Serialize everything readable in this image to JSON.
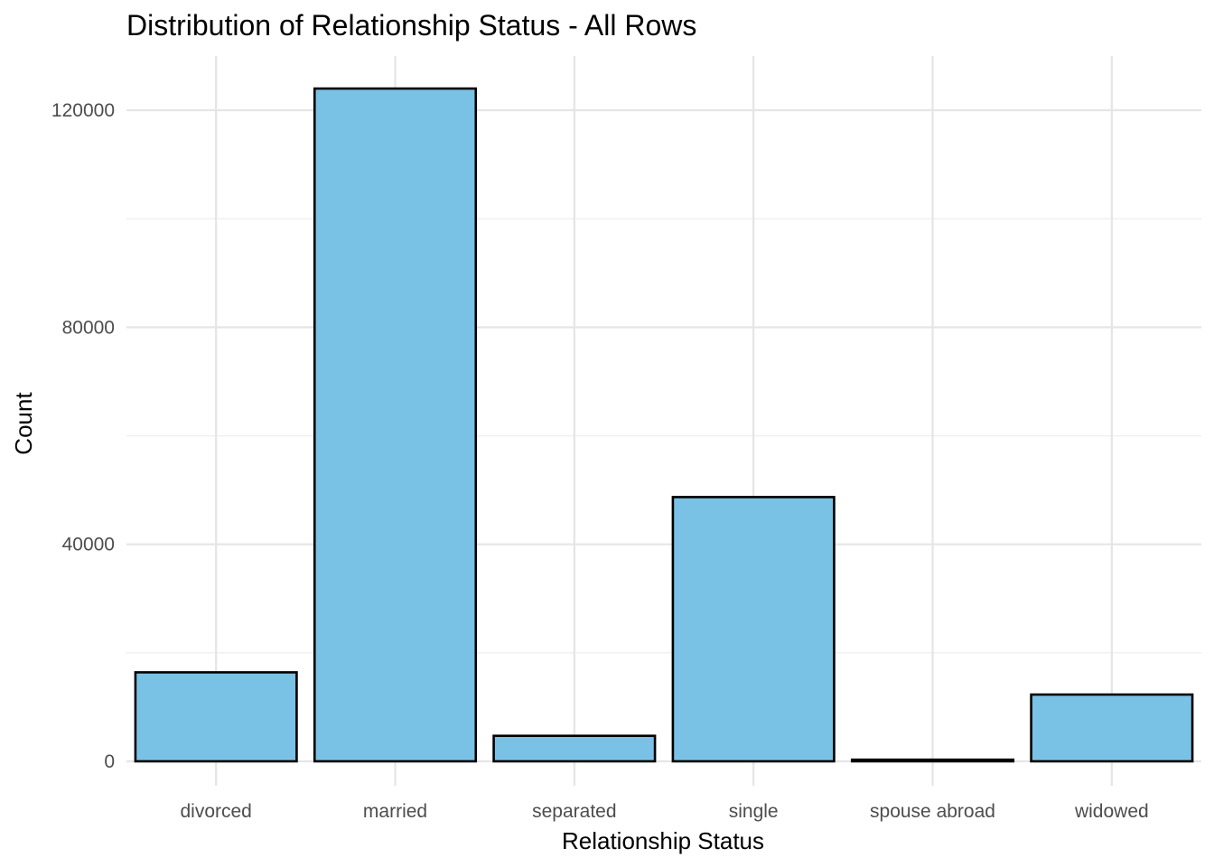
{
  "chart_data": {
    "type": "bar",
    "title": "Distribution of Relationship Status - All Rows",
    "xlabel": "Relationship Status",
    "ylabel": "Count",
    "categories": [
      "divorced",
      "married",
      "separated",
      "single",
      "spouse abroad",
      "widowed"
    ],
    "values": [
      16400,
      124000,
      4700,
      48700,
      300,
      12300
    ],
    "ylim": [
      -4500,
      130000
    ],
    "y_ticks": [
      0,
      40000,
      80000,
      120000
    ],
    "y_tick_labels": [
      "0",
      "40000",
      "80000",
      "120000"
    ],
    "y_minor_ticks": [
      20000,
      60000,
      100000
    ],
    "grid": true,
    "legend": "none",
    "colors": {
      "bar_fill": "#7AC2E5",
      "bar_stroke": "#000000",
      "grid": "#E5E5E5",
      "tick_text": "#4D4D4D",
      "text": "#000000"
    }
  }
}
